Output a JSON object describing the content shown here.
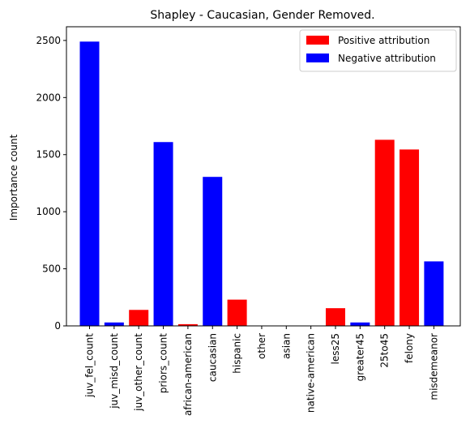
{
  "chart_data": {
    "type": "bar",
    "title": "Shapley - Caucasian, Gender Removed.",
    "xlabel": "",
    "ylabel": "Importance count",
    "ylim": [
      0,
      2620
    ],
    "yticks": [
      0,
      500,
      1000,
      1500,
      2000,
      2500
    ],
    "grid": false,
    "legend_position": "top-right",
    "legend": [
      {
        "label": "Positive attribution",
        "color": "#ff0000"
      },
      {
        "label": "Negative attribution",
        "color": "#0000ff"
      }
    ],
    "categories": [
      "juv_fel_count",
      "juv_misd_count",
      "juv_other_count",
      "priors_count",
      "african-american",
      "caucasian",
      "hispanic",
      "other",
      "asian",
      "native-american",
      "less25",
      "greater45",
      "25to45",
      "felony",
      "misdemeanor"
    ],
    "values": [
      2490,
      30,
      140,
      1610,
      15,
      1305,
      230,
      0,
      0,
      0,
      155,
      30,
      1630,
      1545,
      565
    ],
    "attribution": [
      "negative",
      "negative",
      "positive",
      "negative",
      "positive",
      "negative",
      "positive",
      "positive",
      "positive",
      "positive",
      "positive",
      "negative",
      "positive",
      "positive",
      "negative"
    ]
  }
}
